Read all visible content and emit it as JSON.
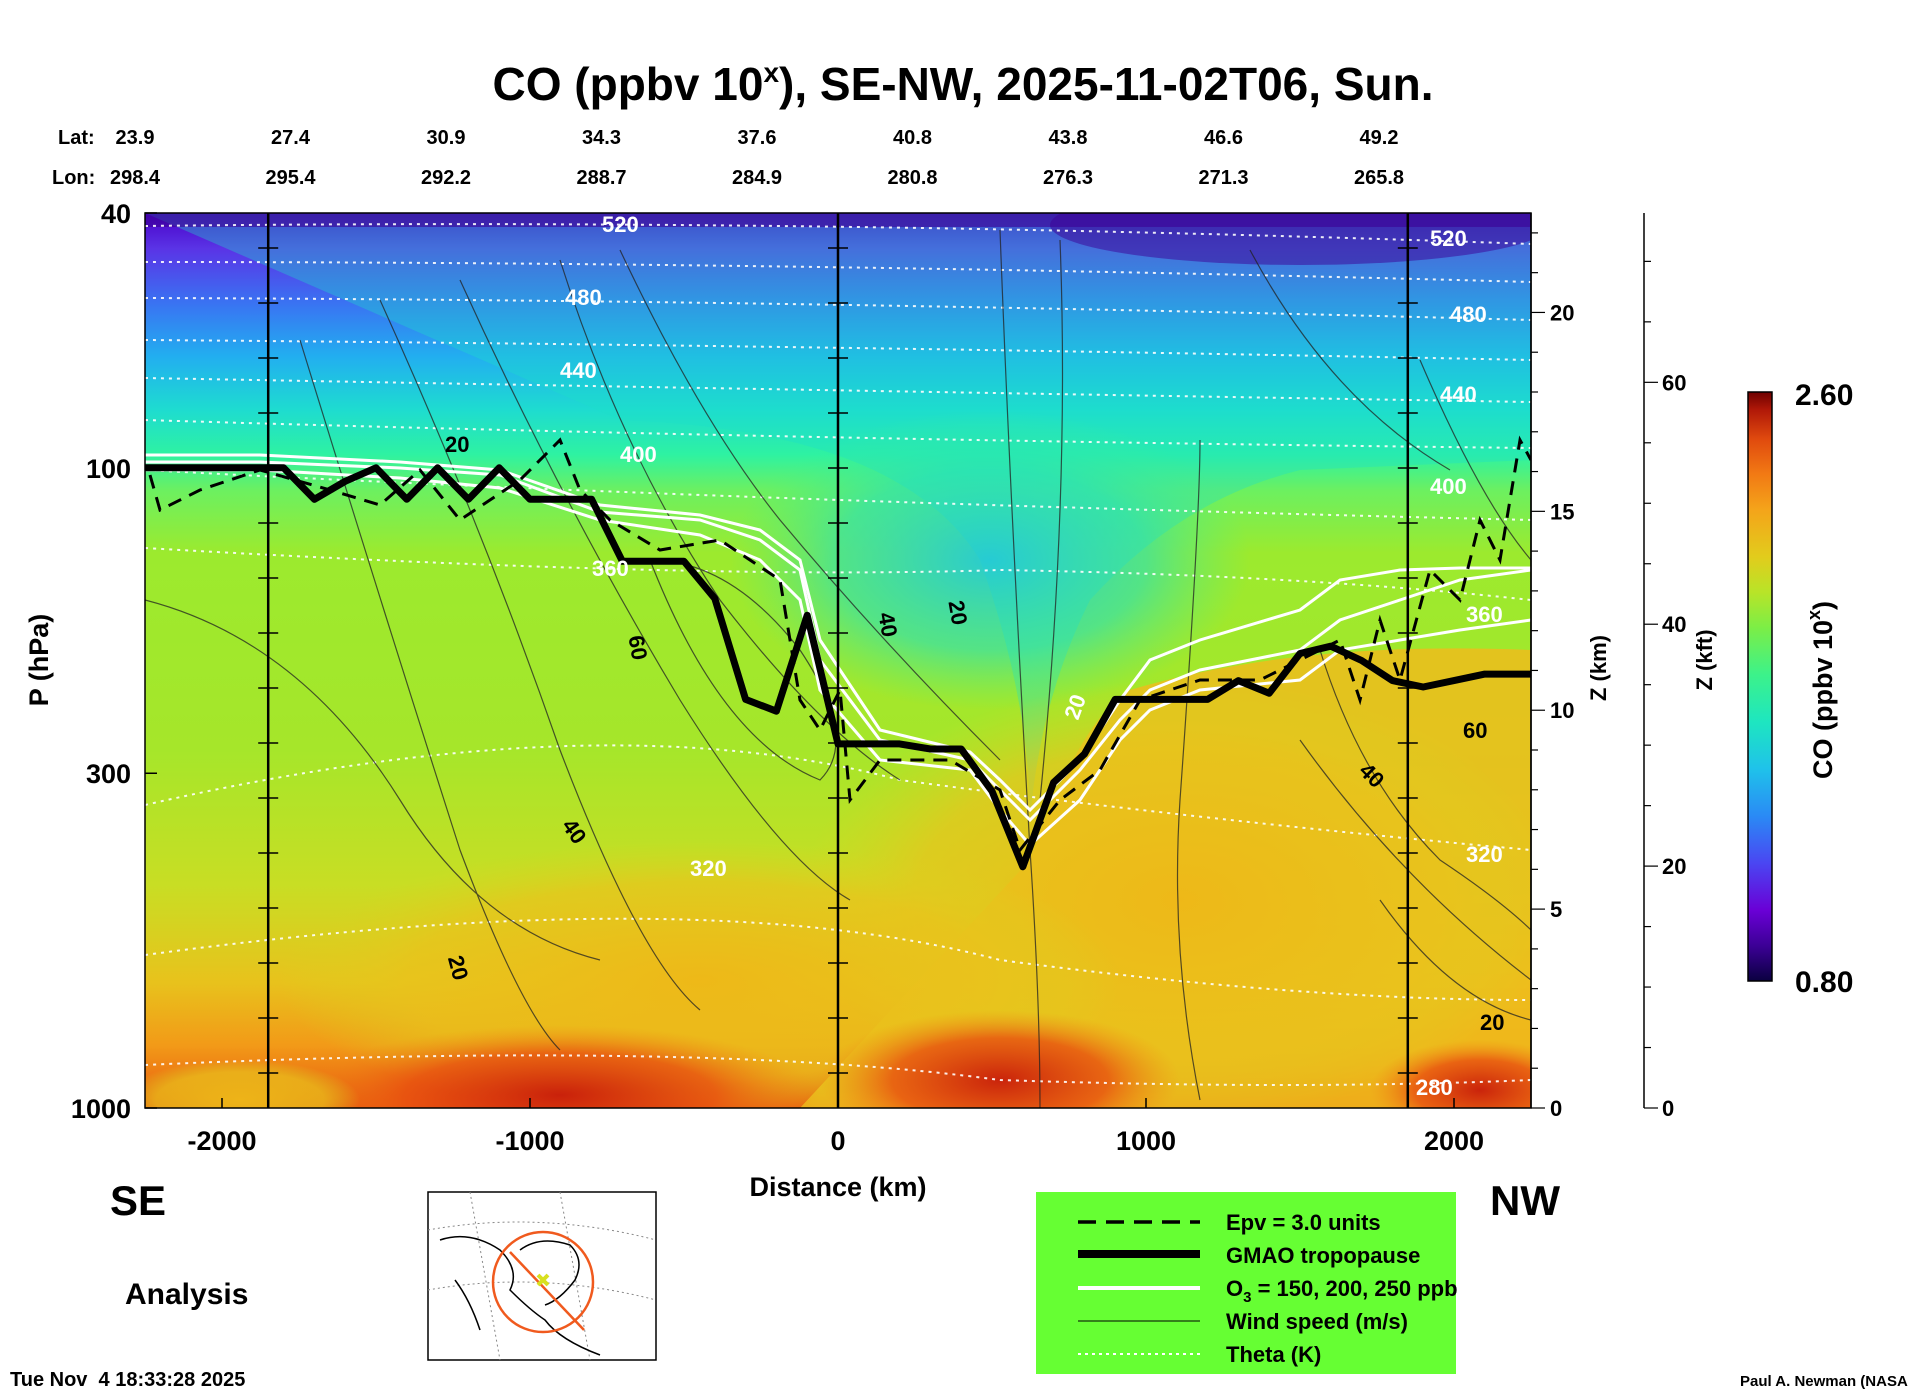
{
  "chart_data": {
    "type": "heatmap",
    "title": "CO (ppbv 10",
    "title_sup": "x",
    "title_rest": "), SE-NW, 2025-11-02T06, Sun.",
    "xlabel": "Distance (km)",
    "ylabel": "P (hPa)",
    "xlim": [
      -2250,
      2250
    ],
    "x_ticks": [
      -2000,
      -1000,
      0,
      1000,
      2000
    ],
    "x_tick_labels": [
      "-2000",
      "-1000",
      "0",
      "1000",
      "2000"
    ],
    "ylim_hPa": [
      40,
      1000
    ],
    "y_ticks_hPa": [
      40,
      100,
      300,
      1000
    ],
    "y_tick_labels": [
      "40",
      "100",
      "300",
      "1000"
    ],
    "y_scale": "log",
    "z_km_ticks": [
      0,
      5,
      10,
      15,
      20
    ],
    "z_km_label": "Z (km)",
    "z_kft_ticks": [
      0,
      20,
      40,
      60
    ],
    "z_kft_label": "Z (kft)",
    "lat_label": "Lat:",
    "lon_label": "Lon:",
    "lats": [
      "23.9",
      "27.4",
      "30.9",
      "34.3",
      "37.6",
      "40.8",
      "43.8",
      "46.6",
      "49.2"
    ],
    "lons": [
      "298.4",
      "295.4",
      "292.2",
      "288.7",
      "284.9",
      "280.8",
      "276.3",
      "271.3",
      "265.8"
    ],
    "marker_lines_km": [
      -1850,
      0,
      1850
    ],
    "tropopause": {
      "x": [
        -2250,
        -2000,
        -1900,
        -1800,
        -1700,
        -1600,
        -1500,
        -1400,
        -1300,
        -1200,
        -1100,
        -1000,
        -900,
        -800,
        -700,
        -600,
        -500,
        -400,
        -300,
        -200,
        -100,
        0,
        100,
        200,
        300,
        400,
        500,
        600,
        700,
        800,
        900,
        1000,
        1100,
        1200,
        1300,
        1400,
        1500,
        1600,
        1700,
        1800,
        1900,
        2000,
        2100,
        2250
      ],
      "p": [
        100,
        100,
        100,
        100,
        112,
        105,
        100,
        112,
        100,
        112,
        100,
        112,
        112,
        112,
        140,
        140,
        140,
        160,
        230,
        240,
        170,
        270,
        270,
        270,
        275,
        275,
        320,
        420,
        310,
        280,
        230,
        230,
        230,
        230,
        215,
        225,
        195,
        190,
        200,
        215,
        220,
        215,
        210,
        210
      ]
    },
    "theta_labels": [
      "520",
      "480",
      "440",
      "400",
      "360",
      "320",
      "280"
    ],
    "wind_labels": [
      "20",
      "40",
      "60"
    ],
    "colorbar": {
      "label": "CO (ppbv 10",
      "label_sup": "x",
      "min": 0.8,
      "max": 2.6,
      "min_label": "0.80",
      "max_label": "2.60",
      "colors": [
        "#0a0040",
        "#3c0096",
        "#6a00d6",
        "#5a3cf0",
        "#2f78f5",
        "#1fb4f0",
        "#1ee0c8",
        "#2cf59a",
        "#5cf062",
        "#a4ea2e",
        "#d4d81e",
        "#f2b81a",
        "#f59418",
        "#f06a12",
        "#e0400e",
        "#b81a0a",
        "#6e0000"
      ]
    }
  },
  "legend": {
    "items": [
      {
        "label": "Epv = 3.0 units",
        "style": "dashed"
      },
      {
        "label": "GMAO tropopause",
        "style": "thick"
      },
      {
        "label": "O",
        "sub": "3",
        "rest": " = 150, 200, 250 ppb",
        "style": "white"
      },
      {
        "label": "Wind speed (m/s)",
        "style": "thin"
      },
      {
        "label": "Theta (K)",
        "style": "dotted"
      }
    ]
  },
  "direction_left": "SE",
  "direction_right": "NW",
  "analysis_label": "Analysis",
  "timestamp": "Tue Nov  4 18:33:28 2025",
  "credit": "Paul A. Newman (NASA"
}
